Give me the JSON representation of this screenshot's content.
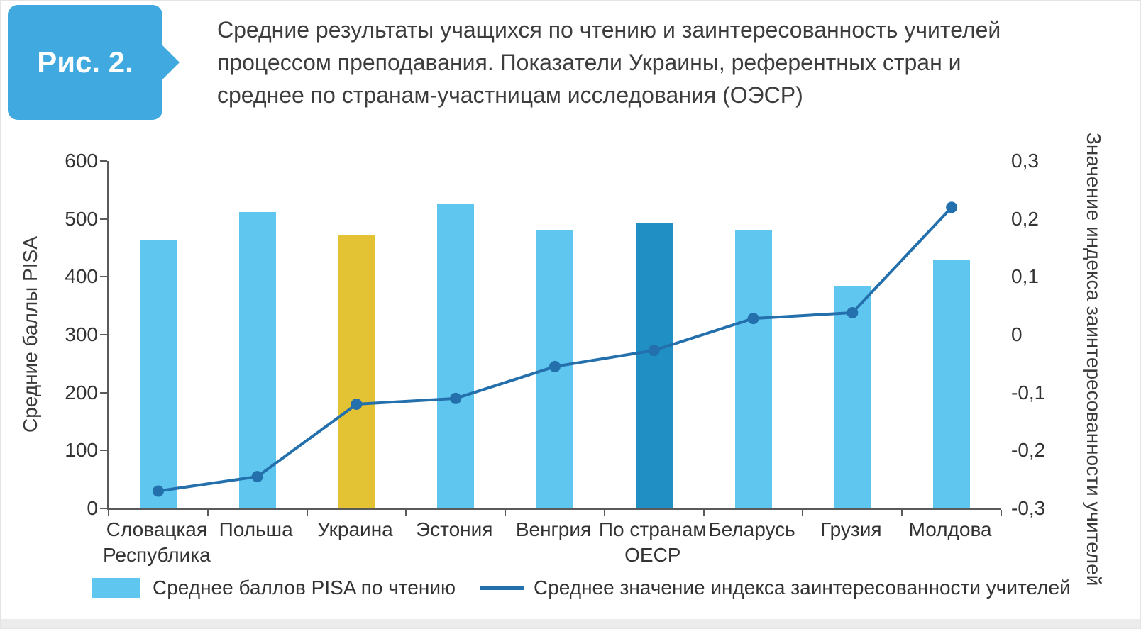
{
  "figure": {
    "badge": "Рис. 2.",
    "badge_color": "#3FA9E0",
    "title_lines": [
      "Средние результаты учащихся по чтению и заинтересованность учителей",
      "процессом преподавания. Показатели Украины, референтных стран и",
      "среднее по странам-участницам исследования (ОЭСР)"
    ]
  },
  "chart_data": {
    "type": "bar",
    "subtype": "bar-line-combo",
    "categories": [
      "Словацкая Республика",
      "Польша",
      "Украина",
      "Эстония",
      "Венгрия",
      "По странам ОЕСР",
      "Беларусь",
      "Грузия",
      "Молдова"
    ],
    "series": [
      {
        "name": "Среднее баллов PISA по чтению",
        "type": "bar",
        "axis": "left",
        "values": [
          463,
          512,
          472,
          527,
          481,
          494,
          481,
          383,
          428
        ],
        "default_color": "#5EC6EF",
        "colors": [
          "#5EC6EF",
          "#5EC6EF",
          "#E3C233",
          "#5EC6EF",
          "#5EC6EF",
          "#1F8FC4",
          "#5EC6EF",
          "#5EC6EF",
          "#5EC6EF"
        ]
      },
      {
        "name": "Среднее значение индекса заинтересованности учителей",
        "type": "line",
        "axis": "right",
        "values": [
          -0.27,
          -0.245,
          -0.12,
          -0.11,
          -0.055,
          -0.027,
          0.028,
          0.038,
          0.22
        ],
        "color": "#2470AC"
      }
    ],
    "left_axis": {
      "label": "Средние баллы PISA",
      "min": 0,
      "max": 600,
      "tick_labels": [
        "600",
        "500",
        "400",
        "300",
        "200",
        "100",
        "0"
      ]
    },
    "right_axis": {
      "label": "Значение индекса заинтересованности учителей",
      "min": -0.3,
      "max": 0.3,
      "tick_labels": [
        "0,3",
        "0,2",
        "0,1",
        "0",
        "-0,1",
        "-0,2",
        "-0,3"
      ]
    },
    "legend": [
      {
        "label": "Среднее баллов PISA по чтению",
        "swatch": "bar",
        "color": "#5EC6EF"
      },
      {
        "label": "Среднее значение индекса заинтересованности учителей",
        "swatch": "line",
        "color": "#2470AC"
      }
    ],
    "grid": false,
    "legend_position": "bottom"
  }
}
